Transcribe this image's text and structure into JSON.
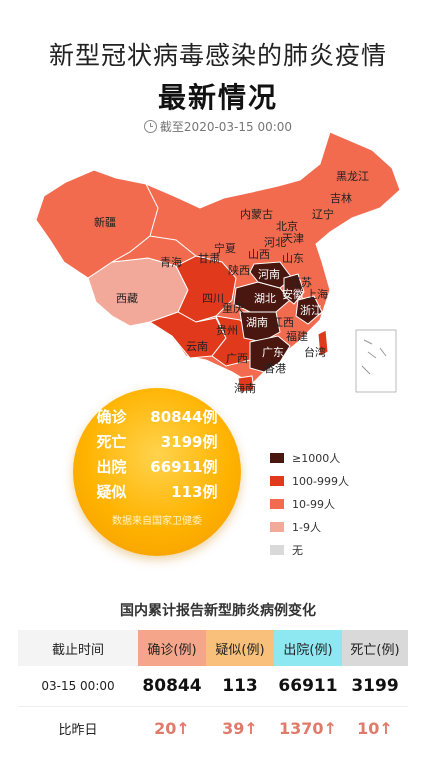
{
  "header": {
    "title_line1": "新型冠状病毒感染的肺炎疫情",
    "title_line2": "最新情况",
    "timestamp": "截至2020-03-15 00:00"
  },
  "map": {
    "provinces": [
      "黑龙江",
      "吉林",
      "辽宁",
      "内蒙古",
      "北京",
      "天津",
      "河北",
      "新疆",
      "青海",
      "甘肃",
      "宁夏",
      "山西",
      "山东",
      "陕西",
      "河南",
      "江苏",
      "安徽",
      "西藏",
      "四川",
      "湖北",
      "上海",
      "重庆",
      "浙江",
      "湖南",
      "江西",
      "贵州",
      "云南",
      "福建",
      "广西",
      "广东",
      "台湾",
      "香港",
      "海南"
    ],
    "colors": {
      "over_1000": "#4a1710",
      "r100_999": "#e0391c",
      "r10_99": "#f26b4f",
      "r1_9": "#f2a99a",
      "none": "#d9d9d9"
    }
  },
  "summary": {
    "confirmed_label": "确诊",
    "confirmed_value": "80844",
    "confirmed_unit": "例",
    "dead_label": "死亡",
    "dead_value": "3199",
    "dead_unit": "例",
    "cured_label": "出院",
    "cured_value": "66911",
    "cured_unit": "例",
    "suspected_label": "疑似",
    "suspected_value": "113",
    "suspected_unit": "例",
    "source": "数据来自国家卫健委"
  },
  "legend": [
    {
      "label": "≥1000人",
      "color": "#4a1710"
    },
    {
      "label": "100-999人",
      "color": "#e0391c"
    },
    {
      "label": "10-99人",
      "color": "#f26b4f"
    },
    {
      "label": "1-9人",
      "color": "#f2a99a"
    },
    {
      "label": "无",
      "color": "#d9d9d9"
    }
  ],
  "table": {
    "title": "国内累计报告新型肺炎病例变化",
    "headers": {
      "time": "截止时间",
      "confirmed": "确诊(例)",
      "suspected": "疑似(例)",
      "cured": "出院(例)",
      "dead": "死亡(例)"
    },
    "current": {
      "time": "03-15 00:00",
      "confirmed": "80844",
      "suspected": "113",
      "cured": "66911",
      "dead": "3199"
    },
    "diff": {
      "label": "比昨日",
      "confirmed": "20↑",
      "suspected": "39↑",
      "cured": "1370↑",
      "dead": "10↑"
    }
  }
}
